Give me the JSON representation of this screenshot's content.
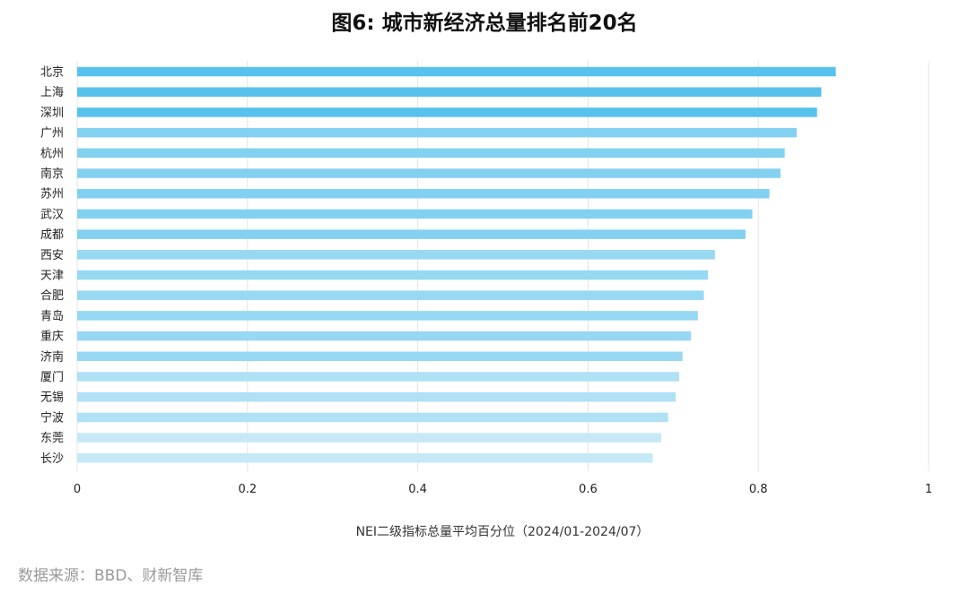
{
  "chart_data": {
    "type": "bar",
    "orientation": "horizontal",
    "title": "图6: 城市新经济总量排名前20名",
    "xlabel": "NEI二级指标总量平均百分位（2024/01-2024/07）",
    "ylabel": "",
    "xlim": [
      0,
      1
    ],
    "xticks": [
      0,
      0.2,
      0.4,
      0.6,
      0.8,
      1
    ],
    "xtick_labels": [
      "0",
      "0.2",
      "0.4",
      "0.6",
      "0.8",
      "1"
    ],
    "grid": "vertical",
    "categories": [
      "北京",
      "上海",
      "深圳",
      "广州",
      "杭州",
      "南京",
      "苏州",
      "武汉",
      "成都",
      "西安",
      "天津",
      "合肥",
      "青岛",
      "重庆",
      "济南",
      "厦门",
      "无锡",
      "宁波",
      "东莞",
      "长沙"
    ],
    "values": [
      0.891,
      0.874,
      0.869,
      0.845,
      0.831,
      0.826,
      0.813,
      0.793,
      0.785,
      0.749,
      0.741,
      0.736,
      0.729,
      0.721,
      0.711,
      0.707,
      0.703,
      0.694,
      0.686,
      0.676
    ],
    "colors": [
      "#57c2ec",
      "#57c2ec",
      "#57c2ec",
      "#83d1f0",
      "#83d1f0",
      "#83d1f0",
      "#83d1f0",
      "#83d1f0",
      "#83d1f0",
      "#97d8f2",
      "#97d8f2",
      "#97d8f2",
      "#97d8f2",
      "#97d8f2",
      "#97d8f2",
      "#b0e1f5",
      "#b0e1f5",
      "#b0e1f5",
      "#c6e9f8",
      "#c6e9f8"
    ]
  },
  "footer": {
    "source": "数据来源：BBD、财新智库"
  }
}
